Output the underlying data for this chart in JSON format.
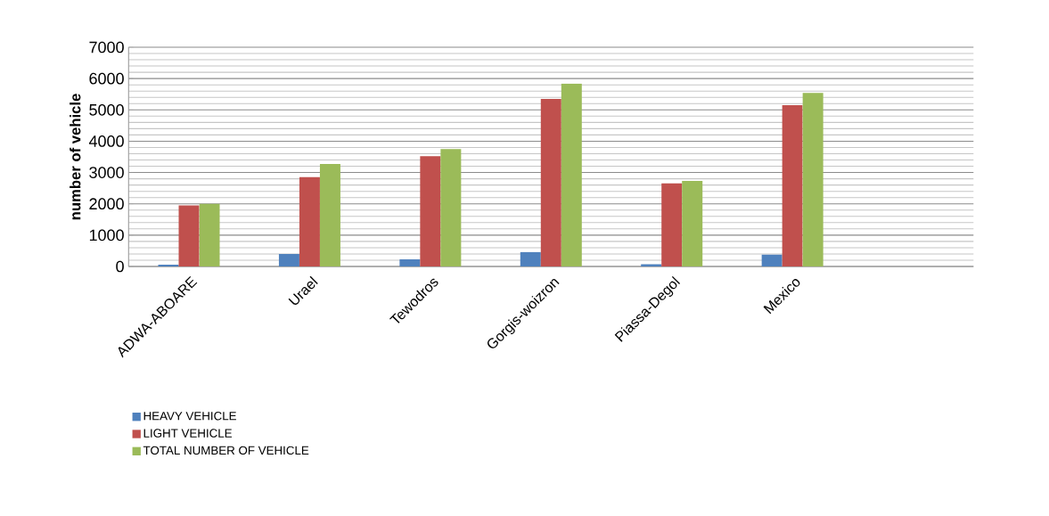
{
  "chart_data": {
    "type": "bar",
    "ylabel": "number of vehicle",
    "categories": [
      "ADWA-ABOARE",
      "Urael",
      "Tewodros",
      "Gorgis-woizron",
      "Piassa-Degol",
      "Mexico",
      null
    ],
    "series": [
      {
        "name": "HEAVY VEHICLE",
        "color": "#4f81bd",
        "values": [
          60,
          400,
          230,
          460,
          70,
          380,
          null
        ]
      },
      {
        "name": "LIGHT VEHICLE",
        "color": "#c0504d",
        "values": [
          1950,
          2850,
          3520,
          5350,
          2650,
          5150,
          null
        ]
      },
      {
        "name": "TOTAL NUMBER OF VEHICLE",
        "color": "#9bbb59",
        "values": [
          2000,
          3270,
          3750,
          5840,
          2730,
          5540,
          null
        ]
      }
    ],
    "ylim": [
      0,
      7000
    ],
    "yticks": [
      0,
      1000,
      2000,
      3000,
      4000,
      5000,
      6000,
      7000
    ],
    "grid": "y",
    "legend": "bottom"
  }
}
